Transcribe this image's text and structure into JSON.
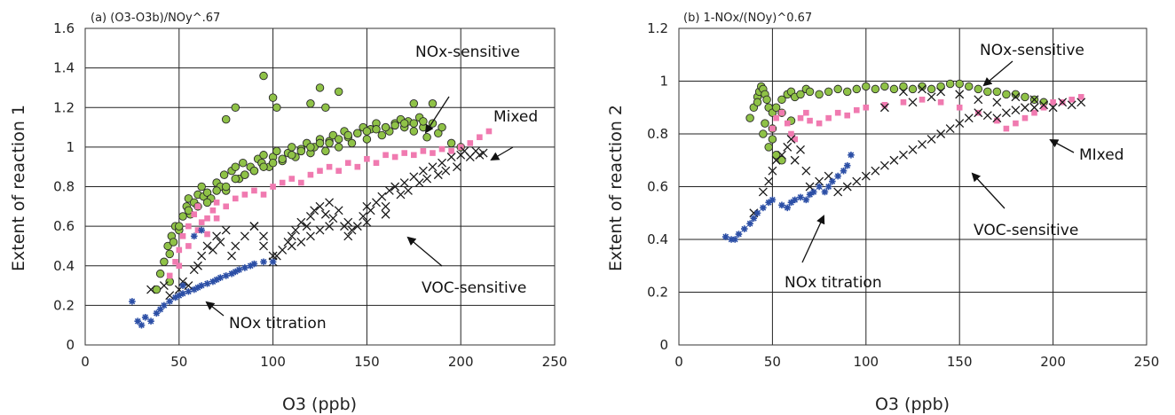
{
  "chart_data": [
    {
      "type": "scatter",
      "title": "(a)  (O3-O3b)/NOy^.67",
      "xlabel": "O3 (ppb)",
      "ylabel": "Extent of reaction 1",
      "xlim": [
        0,
        250
      ],
      "ylim": [
        0,
        1.6
      ],
      "xticks": [
        "0",
        "50",
        "100",
        "150",
        "200",
        "250"
      ],
      "yticks": [
        "0",
        "0.2",
        "0.4",
        "0.6",
        "0.8",
        "1",
        "1.2",
        "1.4",
        "1.6"
      ],
      "grid": true,
      "series": [
        {
          "key": "nox_sensitive",
          "marker": "circle",
          "color": "#8fc247",
          "x": [
            38,
            40,
            42,
            44,
            45,
            46,
            47,
            48,
            50,
            52,
            54,
            55,
            56,
            58,
            60,
            62,
            63,
            65,
            67,
            70,
            72,
            74,
            75,
            78,
            80,
            82,
            84,
            85,
            88,
            90,
            92,
            94,
            95,
            98,
            100,
            102,
            105,
            108,
            110,
            112,
            115,
            118,
            120,
            122,
            125,
            128,
            130,
            132,
            135,
            138,
            140,
            142,
            145,
            148,
            150,
            152,
            155,
            158,
            160,
            162,
            165,
            168,
            170,
            172,
            175,
            178,
            180,
            182,
            185,
            188,
            190,
            195,
            200,
            45,
            50,
            55,
            60,
            65,
            70,
            75,
            80,
            85,
            90,
            95,
            100,
            105,
            110,
            115,
            120,
            125,
            130,
            135,
            140,
            145,
            150,
            155,
            160,
            165,
            170,
            175,
            180,
            75,
            80,
            95,
            100,
            102,
            120,
            125,
            128,
            135,
            175,
            185
          ],
          "y": [
            0.28,
            0.36,
            0.42,
            0.5,
            0.46,
            0.55,
            0.52,
            0.6,
            0.58,
            0.65,
            0.7,
            0.74,
            0.66,
            0.72,
            0.76,
            0.8,
            0.75,
            0.77,
            0.74,
            0.82,
            0.8,
            0.86,
            0.78,
            0.88,
            0.9,
            0.84,
            0.92,
            0.86,
            0.9,
            0.88,
            0.94,
            0.92,
            0.96,
            0.9,
            0.95,
            0.98,
            0.93,
            0.97,
            1.0,
            0.95,
            0.99,
            1.02,
            0.97,
            1.0,
            1.04,
            0.98,
            1.03,
            1.06,
            1.0,
            1.08,
            1.05,
            1.02,
            1.07,
            1.1,
            1.04,
            1.09,
            1.12,
            1.06,
            1.1,
            1.08,
            1.12,
            1.14,
            1.1,
            1.13,
            1.08,
            1.15,
            1.1,
            1.05,
            1.12,
            1.07,
            1.1,
            1.02,
            1.0,
            0.32,
            0.6,
            0.68,
            0.7,
            0.72,
            0.78,
            0.8,
            0.84,
            0.86,
            0.88,
            0.9,
            0.92,
            0.94,
            0.96,
            0.98,
            1.0,
            1.02,
            1.02,
            1.04,
            1.06,
            1.07,
            1.08,
            1.09,
            1.1,
            1.11,
            1.12,
            1.12,
            1.13,
            1.14,
            1.2,
            1.36,
            1.25,
            1.2,
            1.22,
            1.3,
            1.2,
            1.28,
            1.22,
            1.22
          ]
        },
        {
          "key": "mixed",
          "marker": "square",
          "color": "#f07ab0",
          "x": [
            45,
            48,
            50,
            52,
            55,
            58,
            60,
            62,
            65,
            68,
            70,
            75,
            80,
            85,
            90,
            95,
            100,
            105,
            110,
            115,
            120,
            125,
            130,
            135,
            140,
            145,
            150,
            155,
            160,
            165,
            170,
            175,
            180,
            185,
            190,
            195,
            200,
            205,
            210,
            215,
            50,
            55,
            60,
            65,
            70
          ],
          "y": [
            0.35,
            0.42,
            0.48,
            0.55,
            0.6,
            0.66,
            0.58,
            0.62,
            0.64,
            0.68,
            0.72,
            0.7,
            0.74,
            0.76,
            0.78,
            0.76,
            0.8,
            0.82,
            0.84,
            0.82,
            0.86,
            0.88,
            0.9,
            0.88,
            0.92,
            0.9,
            0.94,
            0.92,
            0.96,
            0.95,
            0.97,
            0.96,
            0.98,
            0.97,
            0.99,
            0.98,
            1.0,
            1.02,
            1.05,
            1.08,
            0.4,
            0.5,
            0.7,
            0.56,
            0.64
          ]
        },
        {
          "key": "voc_sensitive",
          "marker": "x",
          "color": "#1a1a1a",
          "x": [
            35,
            42,
            45,
            50,
            52,
            55,
            58,
            60,
            62,
            65,
            68,
            70,
            72,
            75,
            78,
            80,
            85,
            90,
            95,
            100,
            102,
            105,
            108,
            110,
            112,
            115,
            118,
            120,
            122,
            125,
            128,
            130,
            132,
            135,
            138,
            140,
            142,
            145,
            148,
            150,
            152,
            155,
            158,
            160,
            162,
            165,
            168,
            170,
            172,
            175,
            178,
            180,
            182,
            185,
            188,
            190,
            192,
            195,
            198,
            200,
            202,
            205,
            208,
            210,
            212,
            100,
            110,
            115,
            120,
            125,
            130,
            140,
            150,
            160,
            90,
            95
          ],
          "y": [
            0.28,
            0.3,
            0.25,
            0.28,
            0.32,
            0.3,
            0.38,
            0.4,
            0.45,
            0.5,
            0.48,
            0.55,
            0.52,
            0.58,
            0.45,
            0.5,
            0.55,
            0.6,
            0.5,
            0.42,
            0.45,
            0.48,
            0.52,
            0.55,
            0.58,
            0.62,
            0.6,
            0.65,
            0.68,
            0.7,
            0.66,
            0.72,
            0.64,
            0.68,
            0.6,
            0.62,
            0.58,
            0.6,
            0.65,
            0.7,
            0.68,
            0.72,
            0.75,
            0.7,
            0.78,
            0.8,
            0.76,
            0.82,
            0.78,
            0.85,
            0.82,
            0.88,
            0.84,
            0.9,
            0.86,
            0.92,
            0.88,
            0.95,
            0.9,
            0.96,
            0.98,
            0.95,
            0.98,
            0.96,
            0.97,
            0.45,
            0.5,
            0.52,
            0.55,
            0.58,
            0.6,
            0.55,
            0.62,
            0.66,
            0.6,
            0.55
          ]
        },
        {
          "key": "nox_titration",
          "marker": "star",
          "color": "#2c4fa6",
          "x": [
            25,
            28,
            30,
            32,
            35,
            38,
            40,
            42,
            45,
            48,
            50,
            52,
            55,
            58,
            60,
            62,
            65,
            68,
            70,
            72,
            75,
            78,
            80,
            82,
            85,
            88,
            90,
            95,
            100,
            52,
            58,
            62
          ],
          "y": [
            0.22,
            0.12,
            0.1,
            0.14,
            0.12,
            0.16,
            0.18,
            0.2,
            0.22,
            0.24,
            0.25,
            0.26,
            0.27,
            0.28,
            0.29,
            0.3,
            0.31,
            0.32,
            0.33,
            0.34,
            0.35,
            0.36,
            0.37,
            0.38,
            0.39,
            0.4,
            0.41,
            0.42,
            0.42,
            0.3,
            0.55,
            0.58
          ]
        }
      ],
      "annotations": [
        {
          "text": "NOx-sensitive"
        },
        {
          "text": "Mixed"
        },
        {
          "text": "VOC-sensitive"
        },
        {
          "text": "NOx titration"
        }
      ]
    },
    {
      "type": "scatter",
      "title": "(b)  1-NOx/(NOy)^0.67",
      "xlabel": "O3 (ppb)",
      "ylabel": "Extent of reaction 2",
      "xlim": [
        0,
        250
      ],
      "ylim": [
        0,
        1.2
      ],
      "xticks": [
        "0",
        "50",
        "100",
        "150",
        "200",
        "250"
      ],
      "yticks": [
        "0",
        "0.2",
        "0.4",
        "0.6",
        "0.8",
        "1",
        "1.2"
      ],
      "grid": true,
      "series": [
        {
          "key": "nox_sensitive",
          "marker": "circle",
          "color": "#8fc247",
          "x": [
            38,
            40,
            42,
            43,
            44,
            45,
            46,
            47,
            48,
            50,
            52,
            55,
            58,
            60,
            62,
            65,
            68,
            70,
            75,
            80,
            85,
            90,
            95,
            100,
            105,
            110,
            115,
            120,
            125,
            130,
            135,
            140,
            145,
            150,
            155,
            160,
            165,
            170,
            175,
            180,
            185,
            190,
            195,
            45,
            48,
            52,
            55,
            60,
            50,
            55,
            42,
            46,
            50
          ],
          "y": [
            0.86,
            0.9,
            0.94,
            0.96,
            0.98,
            0.97,
            0.95,
            0.93,
            0.9,
            0.88,
            0.9,
            0.93,
            0.95,
            0.96,
            0.94,
            0.95,
            0.97,
            0.96,
            0.95,
            0.96,
            0.97,
            0.96,
            0.97,
            0.98,
            0.97,
            0.98,
            0.97,
            0.98,
            0.97,
            0.98,
            0.97,
            0.98,
            0.99,
            0.99,
            0.98,
            0.97,
            0.96,
            0.96,
            0.95,
            0.95,
            0.94,
            0.93,
            0.92,
            0.8,
            0.75,
            0.72,
            0.7,
            0.85,
            0.82,
            0.88,
            0.92,
            0.84,
            0.78
          ]
        },
        {
          "key": "mixed",
          "marker": "square",
          "color": "#f07ab0",
          "x": [
            50,
            52,
            55,
            58,
            60,
            62,
            65,
            68,
            70,
            75,
            80,
            85,
            90,
            95,
            100,
            110,
            120,
            130,
            140,
            150,
            160,
            170,
            175,
            180,
            185,
            190,
            195,
            200,
            205,
            210,
            215
          ],
          "y": [
            0.82,
            0.86,
            0.88,
            0.84,
            0.8,
            0.78,
            0.86,
            0.88,
            0.85,
            0.84,
            0.86,
            0.88,
            0.87,
            0.89,
            0.9,
            0.91,
            0.92,
            0.93,
            0.92,
            0.9,
            0.88,
            0.85,
            0.82,
            0.84,
            0.86,
            0.88,
            0.9,
            0.92,
            0.92,
            0.93,
            0.94
          ]
        },
        {
          "key": "voc_sensitive",
          "marker": "x",
          "color": "#1a1a1a",
          "x": [
            40,
            45,
            48,
            50,
            52,
            55,
            58,
            60,
            62,
            65,
            68,
            70,
            75,
            80,
            85,
            90,
            95,
            100,
            105,
            110,
            115,
            120,
            125,
            130,
            135,
            140,
            145,
            150,
            155,
            160,
            165,
            170,
            175,
            180,
            185,
            190,
            195,
            200,
            205,
            210,
            215,
            120,
            130,
            140,
            110,
            125,
            135,
            150,
            160,
            170,
            180,
            190
          ],
          "y": [
            0.5,
            0.58,
            0.62,
            0.66,
            0.7,
            0.72,
            0.75,
            0.78,
            0.7,
            0.74,
            0.66,
            0.6,
            0.62,
            0.64,
            0.58,
            0.6,
            0.62,
            0.64,
            0.66,
            0.68,
            0.7,
            0.72,
            0.74,
            0.76,
            0.78,
            0.8,
            0.82,
            0.84,
            0.86,
            0.88,
            0.87,
            0.86,
            0.88,
            0.89,
            0.9,
            0.9,
            0.91,
            0.9,
            0.92,
            0.91,
            0.92,
            0.96,
            0.97,
            0.96,
            0.9,
            0.92,
            0.94,
            0.95,
            0.93,
            0.92,
            0.94,
            0.93
          ]
        },
        {
          "key": "nox_titration",
          "marker": "star",
          "color": "#2c4fa6",
          "x": [
            25,
            28,
            30,
            32,
            35,
            38,
            40,
            42,
            45,
            48,
            50,
            55,
            58,
            60,
            62,
            65,
            68,
            70,
            72,
            75,
            78,
            80,
            82,
            85,
            88,
            90,
            92
          ],
          "y": [
            0.41,
            0.4,
            0.4,
            0.42,
            0.44,
            0.46,
            0.48,
            0.5,
            0.52,
            0.54,
            0.55,
            0.53,
            0.52,
            0.54,
            0.55,
            0.56,
            0.55,
            0.57,
            0.58,
            0.6,
            0.58,
            0.6,
            0.62,
            0.64,
            0.66,
            0.68,
            0.72
          ]
        }
      ],
      "annotations": [
        {
          "text": "NOx-sensitive"
        },
        {
          "text": "MIxed"
        },
        {
          "text": "VOC-sensitive"
        },
        {
          "text": "NOx titration"
        }
      ]
    }
  ]
}
